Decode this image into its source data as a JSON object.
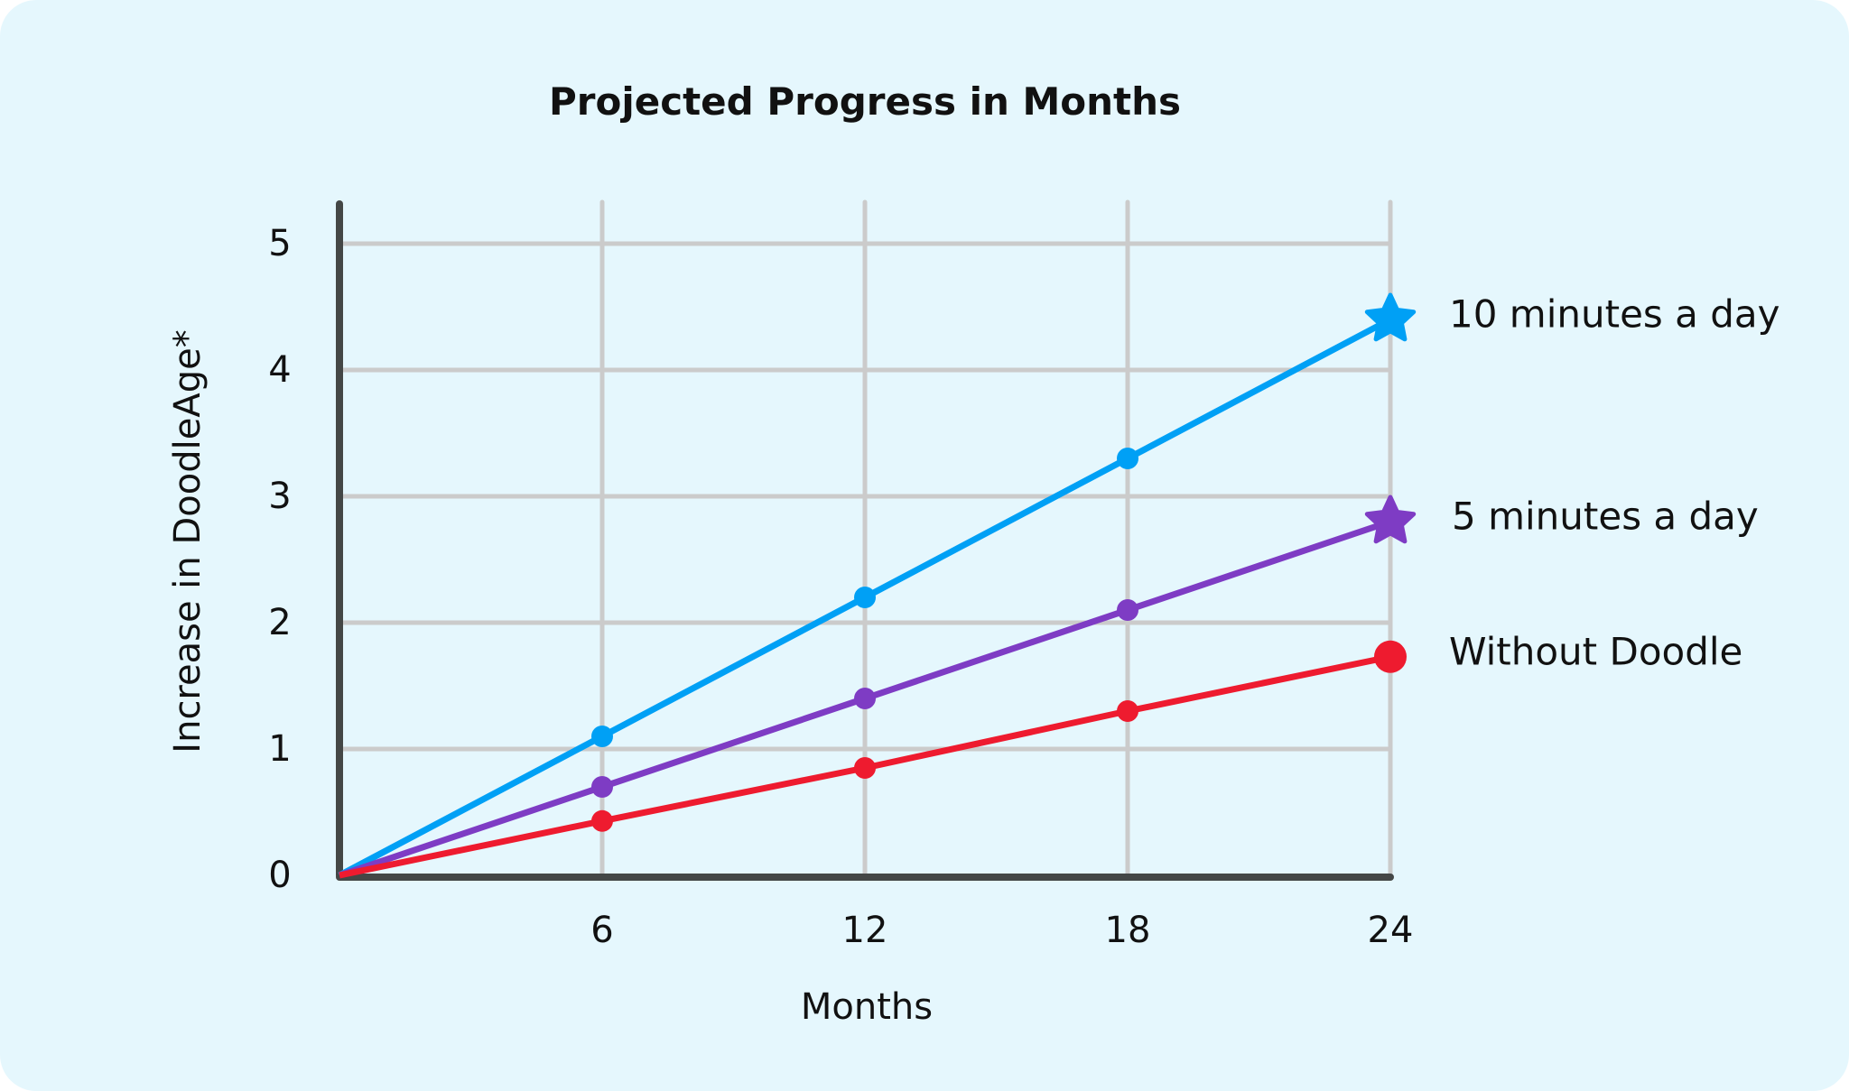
{
  "chart_data": {
    "type": "line",
    "title": "Projected Progress in Months",
    "xlabel": "Months",
    "ylabel": "Increase in DoodleAge*",
    "x": [
      0,
      6,
      12,
      18,
      24
    ],
    "x_tick_labels": [
      "6",
      "12",
      "18",
      "24"
    ],
    "y_tick_labels": [
      "0",
      "1",
      "2",
      "3",
      "4",
      "5"
    ],
    "xlim": [
      0,
      24
    ],
    "ylim": [
      0,
      5
    ],
    "grid": true,
    "legend_position": "right, inline labels at line ends",
    "series": [
      {
        "name": "10 minutes a day",
        "color": "#00A0F5",
        "end_marker": "star",
        "values": [
          0,
          1.1,
          2.2,
          3.3,
          4.4
        ]
      },
      {
        "name": "5 minutes a day",
        "color": "#7E3CC4",
        "end_marker": "star",
        "values": [
          0,
          0.7,
          1.4,
          2.1,
          2.8
        ]
      },
      {
        "name": "Without Doodle",
        "color": "#EE1B2F",
        "end_marker": "circle",
        "values": [
          0,
          0.43,
          0.85,
          1.3,
          1.73
        ]
      }
    ]
  },
  "colors": {
    "background": "#E5F7FD",
    "axis": "#444746",
    "grid": "#CBCBCB"
  }
}
